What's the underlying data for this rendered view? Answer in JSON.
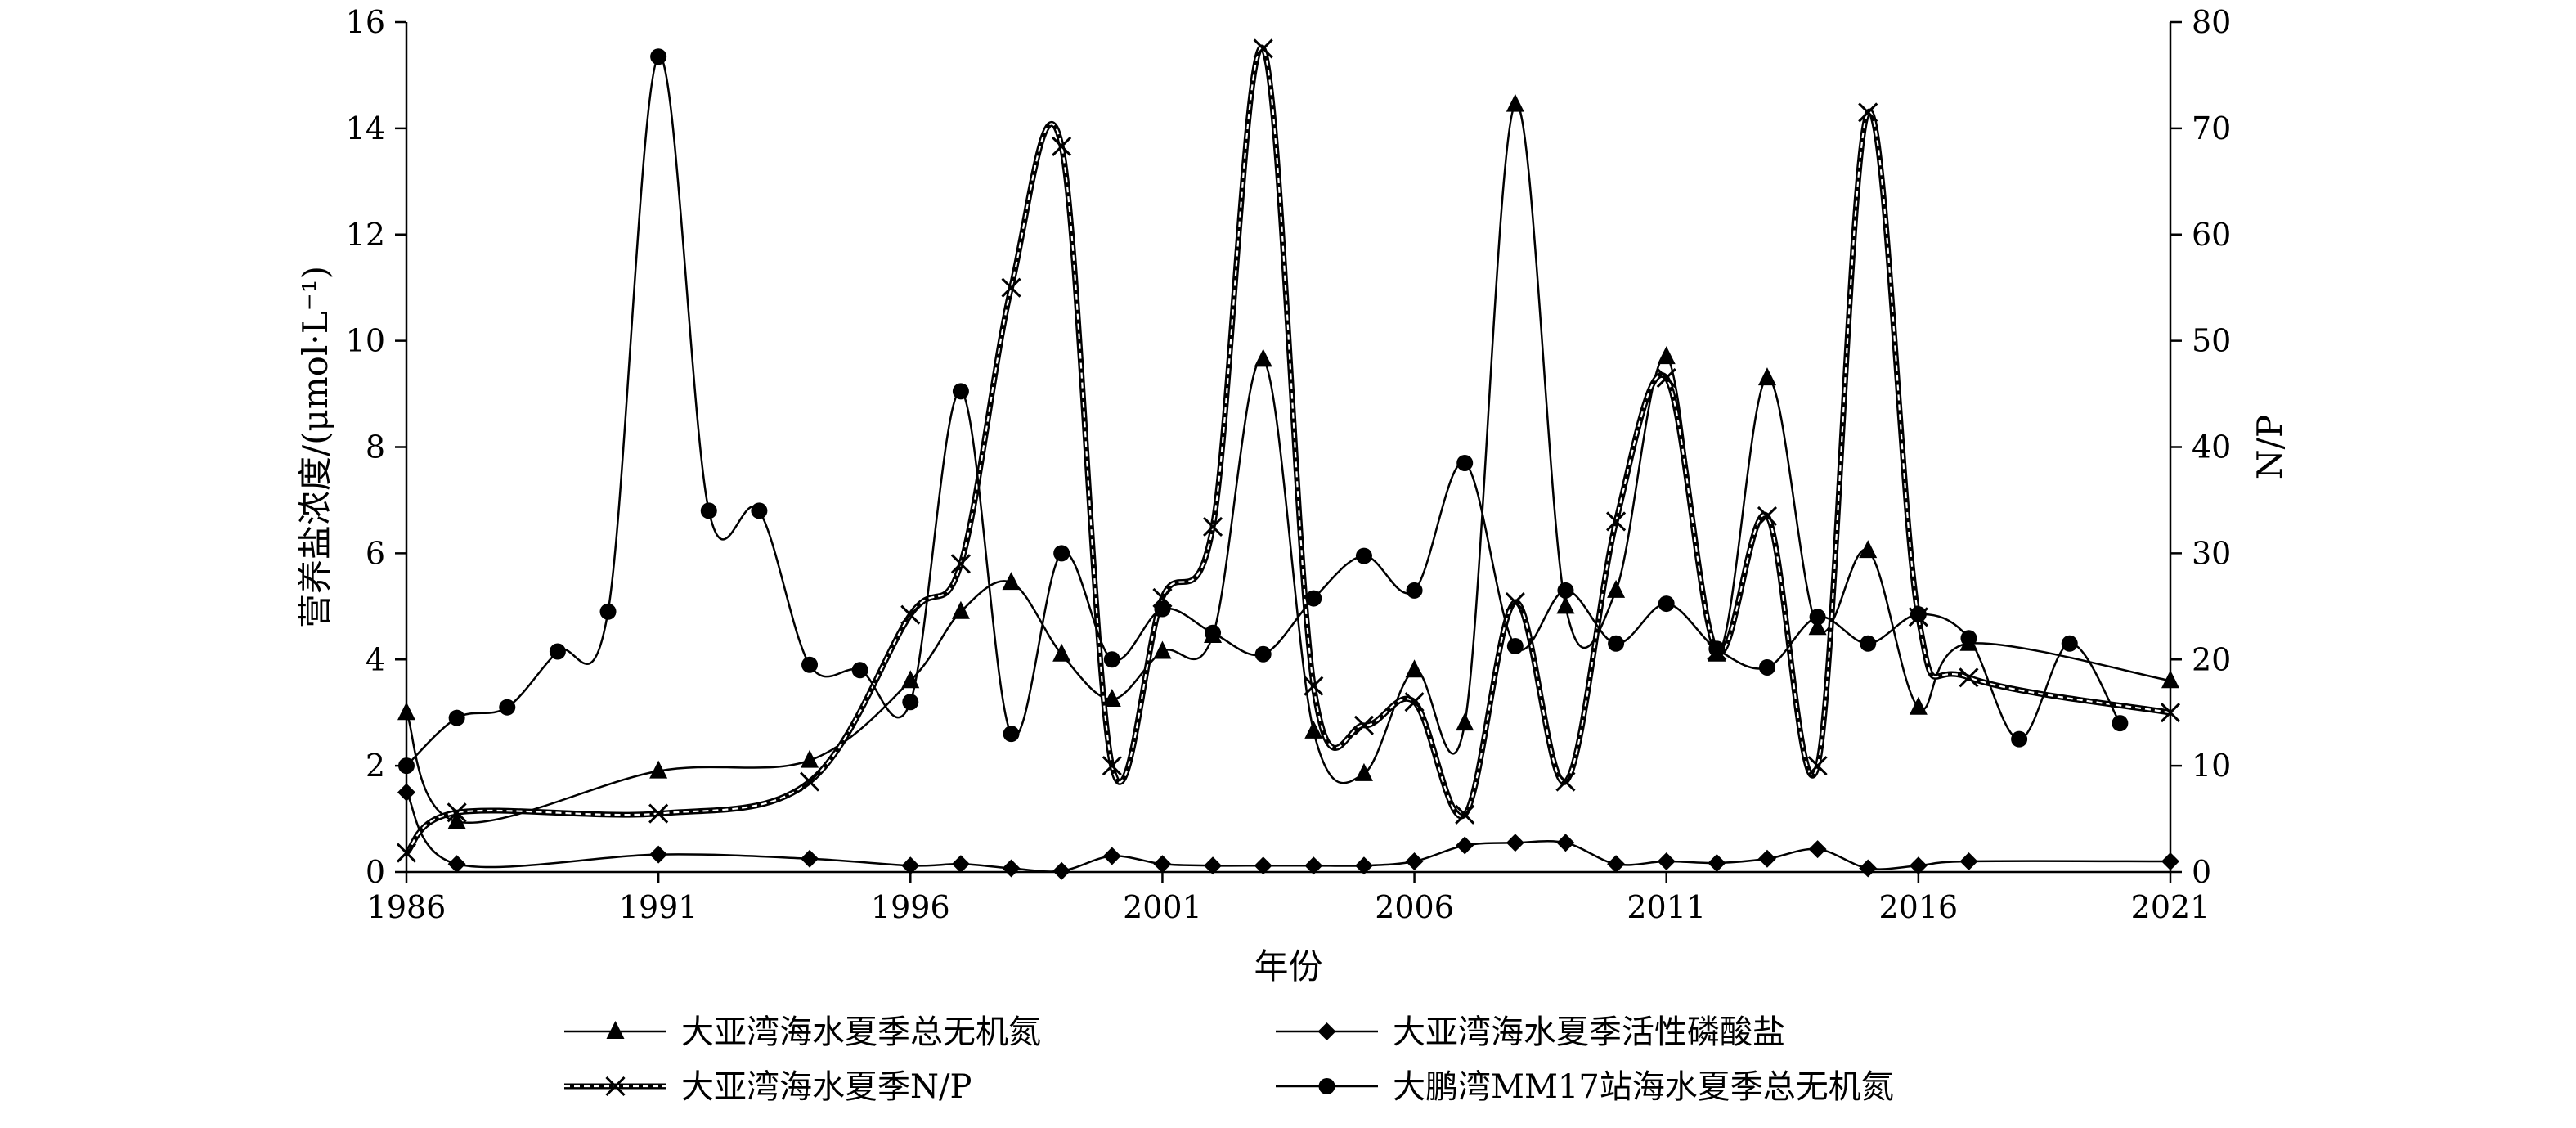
{
  "chart_data": {
    "type": "line",
    "xlabel": "年份",
    "ylabel_left": "营养盐浓度/(μmol·L⁻¹)",
    "ylabel_right": "N/P",
    "xlim": [
      1986,
      2021
    ],
    "ylim_left": [
      0,
      16
    ],
    "ylim_right": [
      0,
      80
    ],
    "x_ticks": [
      "1986",
      "1991",
      "1996",
      "2001",
      "2006",
      "2011",
      "2016",
      "2021"
    ],
    "y_ticks_left": [
      "0",
      "2",
      "4",
      "6",
      "8",
      "10",
      "12",
      "14",
      "16"
    ],
    "y_ticks_right": [
      "0",
      "10",
      "20",
      "30",
      "40",
      "50",
      "60",
      "70",
      "80"
    ],
    "grid": false,
    "legend_position": "bottom",
    "series": [
      {
        "name": "大亚湾海水夏季总无机氮",
        "axis": "left",
        "marker": "triangle",
        "dashed": false,
        "color": "#000000",
        "points": [
          [
            1986,
            3.0
          ],
          [
            1987,
            0.95
          ],
          [
            1991,
            1.9
          ],
          [
            1994,
            2.1
          ],
          [
            1996,
            3.6
          ],
          [
            1997,
            4.9
          ],
          [
            1998,
            5.45
          ],
          [
            1999,
            4.1
          ],
          [
            2000,
            3.25
          ],
          [
            2001,
            4.15
          ],
          [
            2002,
            4.45
          ],
          [
            2003,
            9.65
          ],
          [
            2004,
            2.65
          ],
          [
            2005,
            1.85
          ],
          [
            2006,
            3.8
          ],
          [
            2007,
            2.8
          ],
          [
            2008,
            14.45
          ],
          [
            2009,
            5.0
          ],
          [
            2010,
            5.3
          ],
          [
            2011,
            9.7
          ],
          [
            2012,
            4.1
          ],
          [
            2013,
            9.3
          ],
          [
            2014,
            4.6
          ],
          [
            2015,
            6.05
          ],
          [
            2016,
            3.1
          ],
          [
            2017,
            4.3
          ],
          [
            2021,
            3.6
          ]
        ]
      },
      {
        "name": "大亚湾海水夏季活性磷酸盐",
        "axis": "left",
        "marker": "diamond",
        "dashed": false,
        "color": "#000000",
        "points": [
          [
            1986,
            1.5
          ],
          [
            1987,
            0.15
          ],
          [
            1991,
            0.33
          ],
          [
            1994,
            0.25
          ],
          [
            1996,
            0.12
          ],
          [
            1997,
            0.15
          ],
          [
            1998,
            0.07
          ],
          [
            1999,
            0.02
          ],
          [
            2000,
            0.3
          ],
          [
            2001,
            0.15
          ],
          [
            2002,
            0.12
          ],
          [
            2003,
            0.12
          ],
          [
            2004,
            0.12
          ],
          [
            2005,
            0.12
          ],
          [
            2006,
            0.2
          ],
          [
            2007,
            0.5
          ],
          [
            2008,
            0.55
          ],
          [
            2009,
            0.55
          ],
          [
            2010,
            0.15
          ],
          [
            2011,
            0.2
          ],
          [
            2012,
            0.17
          ],
          [
            2013,
            0.25
          ],
          [
            2014,
            0.43
          ],
          [
            2015,
            0.07
          ],
          [
            2016,
            0.12
          ],
          [
            2017,
            0.2
          ],
          [
            2021,
            0.2
          ]
        ]
      },
      {
        "name": "大亚湾海水夏季N/P",
        "axis": "right",
        "marker": "x",
        "dashed": true,
        "color": "#000000",
        "points": [
          [
            1986,
            1.8
          ],
          [
            1987,
            5.6
          ],
          [
            1991,
            5.5
          ],
          [
            1994,
            8.5
          ],
          [
            1996,
            24.2
          ],
          [
            1997,
            29.0
          ],
          [
            1998,
            55.0
          ],
          [
            1999,
            68.3
          ],
          [
            2000,
            10.0
          ],
          [
            2001,
            25.8
          ],
          [
            2002,
            32.5
          ],
          [
            2003,
            77.5
          ],
          [
            2004,
            17.5
          ],
          [
            2005,
            13.8
          ],
          [
            2006,
            16.0
          ],
          [
            2007,
            5.4
          ],
          [
            2008,
            25.4
          ],
          [
            2009,
            8.5
          ],
          [
            2010,
            33.0
          ],
          [
            2011,
            46.5
          ],
          [
            2012,
            20.8
          ],
          [
            2013,
            33.5
          ],
          [
            2014,
            10.0
          ],
          [
            2015,
            71.5
          ],
          [
            2016,
            24.0
          ],
          [
            2017,
            18.3
          ],
          [
            2021,
            15.0
          ]
        ]
      },
      {
        "name": "大鹏湾MM17站海水夏季总无机氮",
        "axis": "left",
        "marker": "circle",
        "dashed": false,
        "color": "#000000",
        "points": [
          [
            1986,
            2.0
          ],
          [
            1987,
            2.9
          ],
          [
            1988,
            3.1
          ],
          [
            1989,
            4.15
          ],
          [
            1990,
            4.9
          ],
          [
            1991,
            15.35
          ],
          [
            1992,
            6.8
          ],
          [
            1993,
            6.8
          ],
          [
            1994,
            3.9
          ],
          [
            1995,
            3.8
          ],
          [
            1996,
            3.2
          ],
          [
            1997,
            9.05
          ],
          [
            1998,
            2.6
          ],
          [
            1999,
            6.0
          ],
          [
            2000,
            4.0
          ],
          [
            2001,
            4.95
          ],
          [
            2002,
            4.5
          ],
          [
            2003,
            4.1
          ],
          [
            2004,
            5.15
          ],
          [
            2005,
            5.95
          ],
          [
            2006,
            5.3
          ],
          [
            2007,
            7.7
          ],
          [
            2008,
            4.25
          ],
          [
            2009,
            5.3
          ],
          [
            2010,
            4.3
          ],
          [
            2011,
            5.05
          ],
          [
            2012,
            4.2
          ],
          [
            2013,
            3.85
          ],
          [
            2014,
            4.8
          ],
          [
            2015,
            4.3
          ],
          [
            2016,
            4.85
          ],
          [
            2017,
            4.4
          ],
          [
            2018,
            2.5
          ],
          [
            2019,
            4.3
          ],
          [
            2020,
            2.8
          ]
        ]
      }
    ]
  }
}
